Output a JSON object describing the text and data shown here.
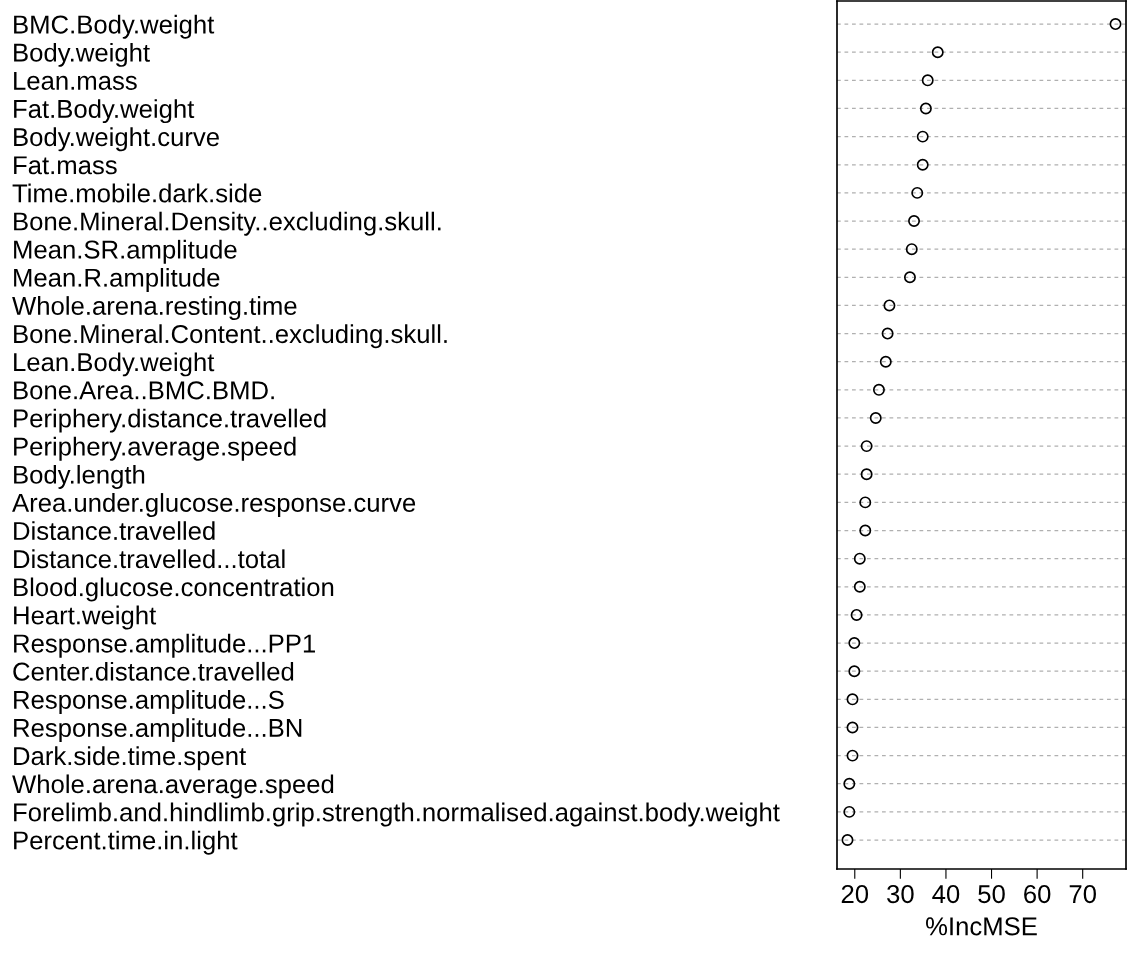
{
  "chart_data": {
    "type": "scatter",
    "orientation": "horizontal",
    "xlabel": "%IncMSE",
    "categories": [
      "BMC.Body.weight",
      "Body.weight",
      "Lean.mass",
      "Fat.Body.weight",
      "Body.weight.curve",
      "Fat.mass",
      "Time.mobile.dark.side",
      "Bone.Mineral.Density..excluding.skull.",
      "Mean.SR.amplitude",
      "Mean.R.amplitude",
      "Whole.arena.resting.time",
      "Bone.Mineral.Content..excluding.skull.",
      "Lean.Body.weight",
      "Bone.Area..BMC.BMD.",
      "Periphery.distance.travelled",
      "Periphery.average.speed",
      "Body.length",
      "Area.under.glucose.response.curve",
      "Distance.travelled",
      "Distance.travelled...total",
      "Blood.glucose.concentration",
      "Heart.weight",
      "Response.amplitude...PP1",
      "Center.distance.travelled",
      "Response.amplitude...S",
      "Response.amplitude...BN",
      "Dark.side.time.spent",
      "Whole.arena.average.speed",
      "Forelimb.and.hindlimb.grip.strength.normalised.against.body.weight",
      "Percent.time.in.light"
    ],
    "values": [
      77.2,
      38.2,
      36.0,
      35.6,
      34.9,
      34.9,
      33.7,
      33.0,
      32.5,
      32.1,
      27.6,
      27.2,
      26.8,
      25.3,
      24.6,
      22.6,
      22.6,
      22.3,
      22.3,
      21.1,
      21.1,
      20.4,
      19.9,
      19.9,
      19.5,
      19.5,
      19.5,
      18.8,
      18.8,
      18.4
    ],
    "color": "#000000",
    "marker": "circle",
    "xlim": [
      16.1,
      79.5
    ],
    "xticks": [
      20,
      30,
      40,
      50,
      60,
      70
    ],
    "grid": "y",
    "line_style": "dashed"
  }
}
